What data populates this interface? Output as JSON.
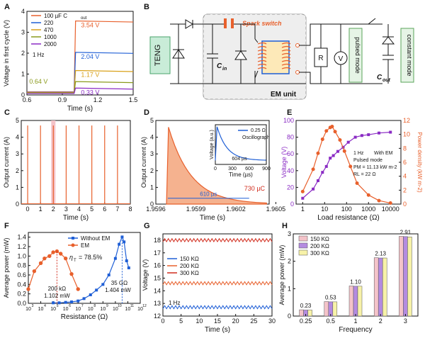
{
  "colors": {
    "orange": "#e8602c",
    "blue": "#1f5fd6",
    "yellow": "#d9a11a",
    "green": "#8a9a1c",
    "purple": "#8a2bc4",
    "red": "#d12c1d",
    "gray": "#888888",
    "fillOrange": "#f5b28f",
    "pink": "#f4c3c9",
    "lavender": "#b48be0",
    "cream": "#f7f2a8"
  },
  "panels": {
    "A": "A",
    "B": "B",
    "C": "C",
    "D": "D",
    "E": "E",
    "F": "F",
    "G": "G",
    "H": "H"
  },
  "diagram": {
    "teng": "TENG",
    "spark": "Spark switch",
    "cin": "C",
    "cin_sub": "in",
    "em_unit": "EM unit",
    "r": "R",
    "v": "V",
    "pulsed": "pulsed mode",
    "constant": "constant mode",
    "cout": "C",
    "cout_sub": "out"
  },
  "chart_data": [
    {
      "panel": "A",
      "type": "line",
      "xlabel": "Time (s)",
      "ylabel": "Voltage in first cycle (V)",
      "xlim": [
        0.6,
        1.5
      ],
      "ylim": [
        0,
        4
      ],
      "xticks": [
        "0.6",
        "0.9",
        "1.2",
        "1.5"
      ],
      "yticks": [
        "0",
        "1",
        "2",
        "3",
        "4"
      ],
      "annotation": "1 Hz",
      "legend": [
        "100 µF C",
        "220",
        "470",
        "1000",
        "2000"
      ],
      "legend_sub": "out",
      "series": [
        {
          "name": "100 µF C",
          "final": 3.54,
          "label": "3.54 V"
        },
        {
          "name": "220",
          "final": 2.04,
          "label": "2.04 V"
        },
        {
          "name": "470",
          "final": 1.17,
          "label": "1.17 V"
        },
        {
          "name": "1000",
          "final": 0.64,
          "label": "0.64 V"
        },
        {
          "name": "2000",
          "final": 0.33,
          "label": "0.33 V"
        }
      ]
    },
    {
      "panel": "C",
      "type": "line",
      "xlabel": "Time (s)",
      "ylabel": "Output current (A)",
      "xlim": [
        -0.5,
        8
      ],
      "ylim": [
        0,
        5
      ],
      "xticks": [
        "0",
        "1",
        "2",
        "3",
        "4",
        "5",
        "6",
        "7",
        "8"
      ],
      "yticks": [
        "0",
        "1",
        "2",
        "3",
        "4",
        "5"
      ],
      "peaks_x": [
        0.0,
        1.0,
        2.0,
        3.0,
        4.0,
        5.0,
        6.0,
        7.0
      ],
      "peak_y": 4.7,
      "highlight_x": 2.0
    },
    {
      "panel": "D",
      "type": "area",
      "xlabel": "Time (s)",
      "ylabel": "Output current (A)",
      "xlim": [
        1.9596,
        1.96045
      ],
      "ylim": [
        0,
        5
      ],
      "xticks": [
        "1.9596",
        "1.9599",
        "1.9602",
        "1.9605"
      ],
      "yticks": [
        "0",
        "1",
        "2",
        "3",
        "4",
        "5"
      ],
      "peak": 4.6,
      "pulse_width": "610 µs",
      "charge": "730 µC",
      "inset": {
        "ylabel": "Voltage (a.u.)",
        "xlabel": "Time (µs)",
        "xticks": [
          "0",
          "300",
          "600",
          "900"
        ],
        "legend": "0.25 Ω",
        "legend2": "Oscillograph",
        "pulse_width": "604 µs"
      }
    },
    {
      "panel": "E",
      "type": "line",
      "xlabel": "Load resistance (Ω)",
      "ylabel": "Voltage (V)",
      "ylabel2": "Power density (kW m",
      "ylabel2_sup": "-2",
      "ylabel2_end": ")",
      "xlim_log": [
        0.5,
        30000
      ],
      "ylim": [
        0,
        100
      ],
      "y2lim": [
        0,
        12
      ],
      "xticks": [
        "1",
        "10",
        "100",
        "1000",
        "10000"
      ],
      "yticks": [
        "0",
        "20",
        "40",
        "60",
        "80",
        "100"
      ],
      "y2ticks": [
        "0",
        "2",
        "4",
        "6",
        "8",
        "10",
        "12"
      ],
      "notes": [
        "1 Hz",
        "With EM",
        "Pulsed mode",
        "P",
        "= 11.13 kW m",
        "R",
        "= 22 Ω"
      ],
      "voltage": {
        "x": [
          1,
          3,
          5,
          8,
          12,
          18,
          25,
          40,
          70,
          120,
          250,
          500,
          1000,
          3000,
          10000
        ],
        "y": [
          7,
          18,
          28,
          38,
          45,
          55,
          58,
          63,
          68,
          74,
          80,
          82,
          83,
          85,
          86
        ]
      },
      "power": {
        "x": [
          1,
          3,
          5,
          8,
          12,
          18,
          22,
          30,
          50,
          80,
          150,
          300,
          1000,
          3000,
          10000
        ],
        "y": [
          1.8,
          5.0,
          7.3,
          9.3,
          10.5,
          11.0,
          11.13,
          10.4,
          9.2,
          7.6,
          5.4,
          3.0,
          1.3,
          0.5,
          0.15
        ]
      }
    },
    {
      "panel": "F",
      "type": "line",
      "xlabel": "Resistance (Ω)",
      "ylabel": "Average power (mW)",
      "xlim_log": [
        1000,
        1000000000000.0
      ],
      "ylim": [
        0,
        1.5
      ],
      "xticks": [
        "10",
        "10",
        "10",
        "10",
        "10",
        "10",
        "10",
        "10",
        "10",
        "10"
      ],
      "xtick_exp": [
        "3",
        "4",
        "5",
        "6",
        "7",
        "8",
        "9",
        "10",
        "11",
        "12"
      ],
      "yticks": [
        "0.0",
        "0.2",
        "0.4",
        "0.6",
        "0.8",
        "1.0",
        "1.2",
        "1.4"
      ],
      "legend": [
        "Without EM",
        "EM"
      ],
      "eta": "η",
      "eta_sub": "T",
      "eta_value": "= 78.5%",
      "mark_em": [
        "200 kΩ",
        "1.102 mW"
      ],
      "mark_without": [
        "35 GΩ",
        "1.404 mW"
      ],
      "without_em": {
        "x": [
          100000.0,
          300000.0,
          1000000.0,
          3000000.0,
          10000000.0,
          30000000.0,
          100000000.0,
          300000000.0,
          1000000000.0,
          3000000000.0,
          10000000000.0,
          20000000000.0,
          35000000000.0,
          50000000000.0,
          80000000000.0,
          120000000000.0
        ],
        "y": [
          0.01,
          0.01,
          0.02,
          0.03,
          0.05,
          0.1,
          0.18,
          0.28,
          0.4,
          0.6,
          0.95,
          1.25,
          1.404,
          1.3,
          0.9,
          0.75
        ]
      },
      "em": {
        "x": [
          1000.0,
          3000.0,
          10000.0,
          20000.0,
          50000.0,
          100000.0,
          200000.0,
          400000.0,
          1000000.0,
          3000000.0,
          10000000.0
        ],
        "y": [
          0.3,
          0.68,
          0.85,
          0.95,
          1.0,
          1.08,
          1.102,
          1.05,
          0.95,
          0.62,
          0.3
        ]
      }
    },
    {
      "panel": "G",
      "type": "line",
      "xlabel": "Time (s)",
      "ylabel": "Voltage (V)",
      "xlim": [
        0,
        30
      ],
      "ylim": [
        12,
        18.5
      ],
      "xticks": [
        "0",
        "5",
        "10",
        "15",
        "20",
        "25",
        "30"
      ],
      "yticks": [
        "12",
        "13",
        "14",
        "15",
        "16",
        "17",
        "18"
      ],
      "annotation": "1 Hz",
      "series": [
        {
          "name": "150 KΩ",
          "level": 12.7
        },
        {
          "name": "200 KΩ",
          "level": 14.6
        },
        {
          "name": "300 KΩ",
          "level": 18.0
        }
      ]
    },
    {
      "panel": "H",
      "type": "bar",
      "xlabel": "Frequency",
      "ylabel": "Average power (mW)",
      "ylim": [
        0,
        3
      ],
      "categories": [
        "0.25",
        "0.5",
        "1",
        "2",
        "3"
      ],
      "yticks": [
        "0",
        "1",
        "2",
        "3"
      ],
      "series": [
        {
          "name": "150 KΩ",
          "values": [
            0.23,
            0.53,
            1.1,
            2.13,
            2.91
          ]
        },
        {
          "name": "200 KΩ",
          "values": [
            0.22,
            0.52,
            1.09,
            2.12,
            2.9
          ]
        },
        {
          "name": "300 KΩ",
          "values": [
            0.22,
            0.52,
            1.09,
            2.12,
            2.89
          ]
        }
      ],
      "labels": [
        "0.23",
        "0.53",
        "1.10",
        "2.13",
        "2.91"
      ]
    }
  ]
}
